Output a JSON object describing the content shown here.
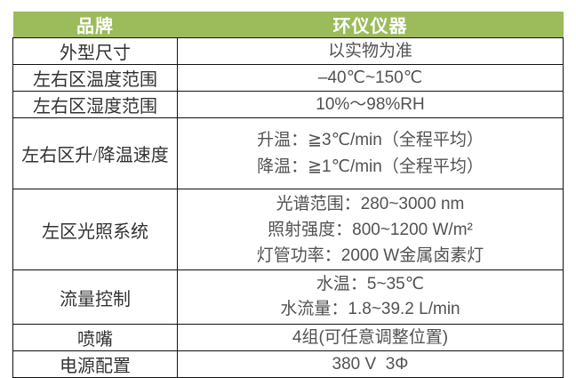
{
  "table": {
    "header": {
      "brand_label": "品牌",
      "brand_value": "环仪仪器"
    },
    "rows": [
      {
        "label": "外型尺寸",
        "lines": [
          "以实物为准"
        ]
      },
      {
        "label": "左右区温度范围",
        "lines": [
          "–40℃~150℃"
        ]
      },
      {
        "label": "左右区湿度范围",
        "lines": [
          "10%～98%RH"
        ]
      },
      {
        "label": "左右区升/降温速度",
        "lines": [
          "升温：≧3℃/min（全程平均）",
          "降温：≧1℃/min（全程平均）"
        ]
      },
      {
        "label": "左区光照系统",
        "lines": [
          "光谱范围：280~3000 nm",
          "照射强度：800~1200 W/m²",
          "灯管功率：2000 W金属卤素灯"
        ]
      },
      {
        "label": "流量控制",
        "lines": [
          "水温：5~35℃",
          "水流量：1.8~39.2 L/min"
        ]
      },
      {
        "label": "喷嘴",
        "lines": [
          "4组(可任意调整位置)"
        ]
      },
      {
        "label": "电源配置",
        "lines": [
          "380 V  3Φ"
        ]
      }
    ]
  },
  "colors": {
    "header_bg": "#9CBB5B",
    "header_text": "#FFFFFF",
    "border": "#111111",
    "label_text": "#333333",
    "value_text": "#525252",
    "page_bg": "#FFFFFF"
  }
}
